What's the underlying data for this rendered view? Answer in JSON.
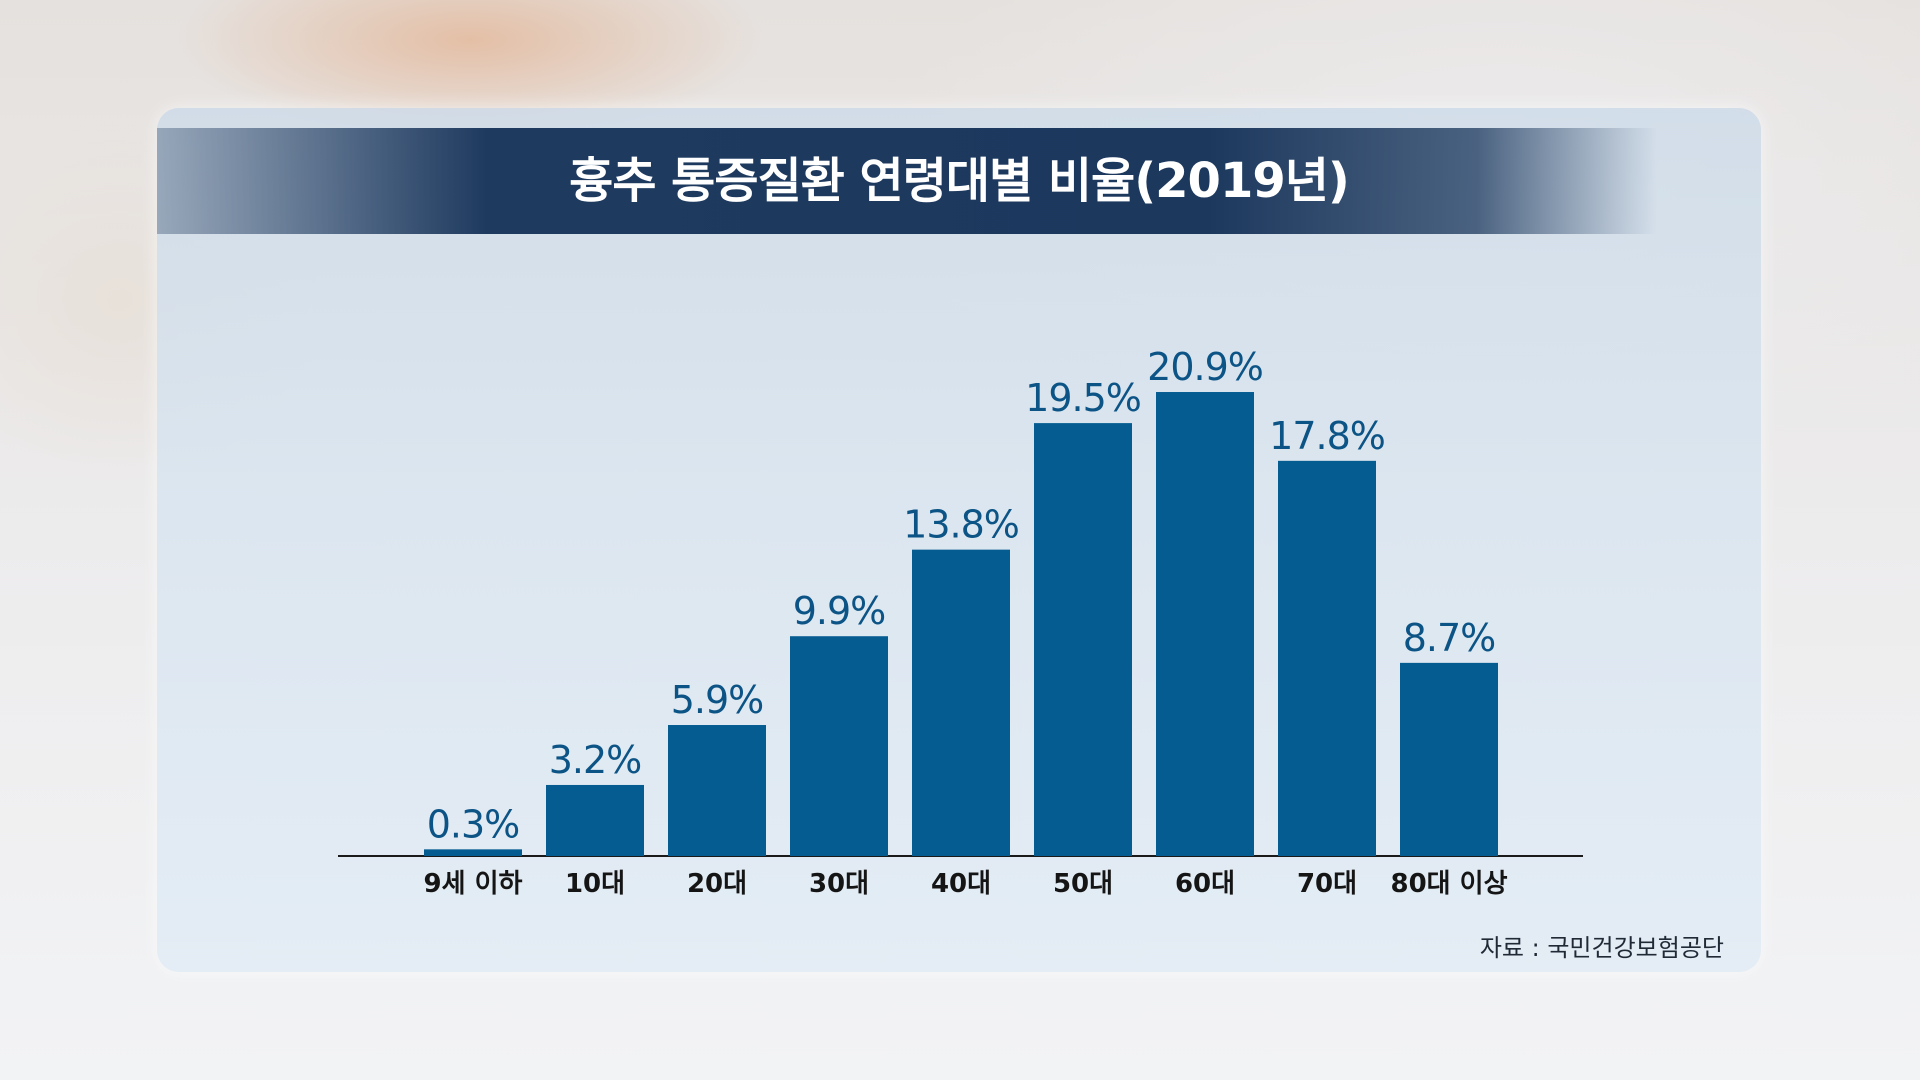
{
  "title": "흉추 통증질환 연령대별 비율(2019년)",
  "source": "자료 : 국민건강보험공단",
  "colors": {
    "bar": "#055c91",
    "label": "#0c5486",
    "axis": "#1a1a1a",
    "category": "#151515"
  },
  "chart_data": {
    "type": "bar",
    "title": "흉추 통증질환 연령대별 비율(2019년)",
    "categories": [
      "9세 이하",
      "10대",
      "20대",
      "30대",
      "40대",
      "50대",
      "60대",
      "70대",
      "80대 이상"
    ],
    "values": [
      0.3,
      3.2,
      5.9,
      9.9,
      13.8,
      19.5,
      20.9,
      17.8,
      8.7
    ],
    "value_labels": [
      "0.3%",
      "3.2%",
      "5.9%",
      "9.9%",
      "13.8%",
      "19.5%",
      "20.9%",
      "17.8%",
      "8.7%"
    ],
    "unit": "%",
    "xlabel": "",
    "ylabel": "",
    "grid": false,
    "legend": "none"
  }
}
